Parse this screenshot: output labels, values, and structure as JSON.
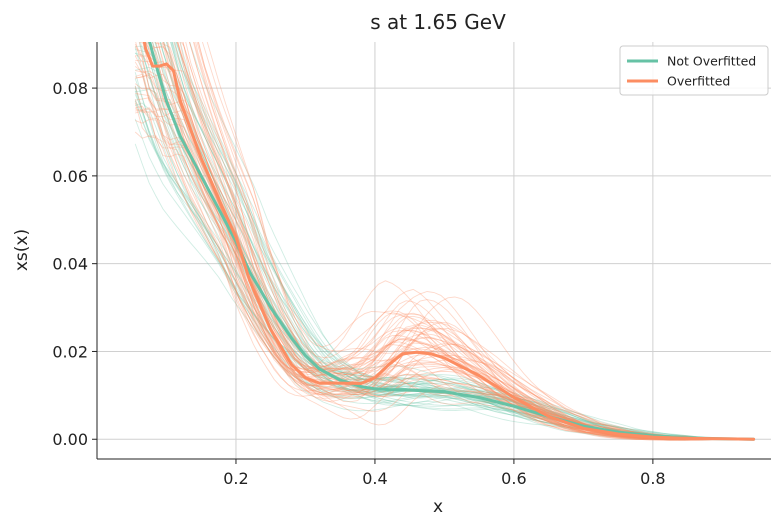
{
  "chart_data": {
    "type": "line",
    "title": "s at 1.65 GeV",
    "xlabel": "x",
    "ylabel": "xs(x)",
    "xlim": [
      0.0,
      0.97
    ],
    "ylim": [
      -0.0045,
      0.0905
    ],
    "x_ticks": [
      0.2,
      0.4,
      0.6,
      0.8
    ],
    "x_tick_labels": [
      "0.2",
      "0.4",
      "0.6",
      "0.8"
    ],
    "y_ticks": [
      0.0,
      0.02,
      0.04,
      0.06,
      0.08
    ],
    "y_tick_labels": [
      "0.00",
      "0.02",
      "0.04",
      "0.06",
      "0.08"
    ],
    "grid": true,
    "legend_position": "top-right",
    "series": [
      {
        "name": "Not Overfitted",
        "color": "#66c2a5",
        "x": [
          0.06,
          0.08,
          0.1,
          0.12,
          0.15,
          0.18,
          0.2,
          0.22,
          0.25,
          0.28,
          0.3,
          0.32,
          0.35,
          0.38,
          0.4,
          0.42,
          0.45,
          0.5,
          0.55,
          0.6,
          0.65,
          0.7,
          0.75,
          0.8,
          0.85,
          0.9,
          0.945
        ],
        "y": [
          0.1,
          0.088,
          0.077,
          0.069,
          0.06,
          0.051,
          0.045,
          0.038,
          0.03,
          0.023,
          0.019,
          0.016,
          0.0135,
          0.012,
          0.0115,
          0.0113,
          0.0112,
          0.0108,
          0.0095,
          0.0075,
          0.0052,
          0.003,
          0.0016,
          0.0008,
          0.0003,
          0.0001,
          0.0
        ]
      },
      {
        "name": "Overfitted",
        "color": "#fc8d62",
        "x": [
          0.06,
          0.07,
          0.08,
          0.09,
          0.1,
          0.11,
          0.12,
          0.15,
          0.18,
          0.2,
          0.22,
          0.25,
          0.28,
          0.3,
          0.32,
          0.35,
          0.38,
          0.4,
          0.42,
          0.44,
          0.46,
          0.48,
          0.5,
          0.55,
          0.6,
          0.65,
          0.7,
          0.75,
          0.8,
          0.85,
          0.9,
          0.945
        ],
        "y": [
          0.098,
          0.089,
          0.085,
          0.085,
          0.0855,
          0.084,
          0.077,
          0.064,
          0.053,
          0.046,
          0.036,
          0.025,
          0.017,
          0.014,
          0.0128,
          0.0128,
          0.0127,
          0.014,
          0.017,
          0.0195,
          0.0198,
          0.0195,
          0.0185,
          0.0145,
          0.0095,
          0.0052,
          0.0025,
          0.0012,
          0.0005,
          0.0002,
          0.0001,
          0.0
        ]
      }
    ]
  }
}
